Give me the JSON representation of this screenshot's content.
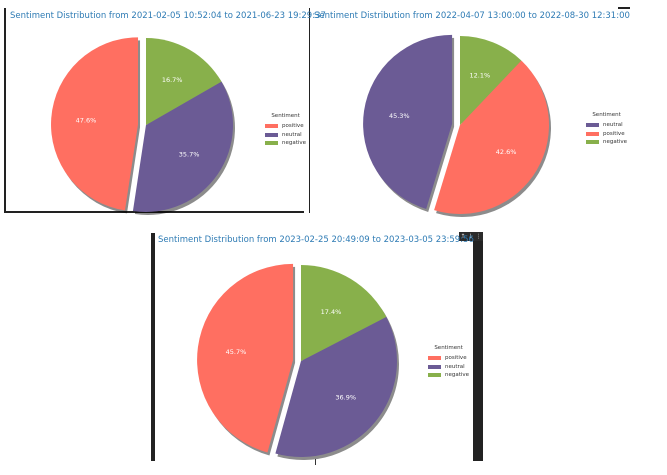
{
  "colors": {
    "positive": "#FF6F61",
    "neutral": "#6B5B95",
    "negative": "#88B04B",
    "title": "#2E7BB4",
    "label": "#ffffff"
  },
  "toolbar": {
    "up_icon": "↑",
    "down_icon": "↓",
    "menu_icon": "⋮"
  },
  "chart_data": [
    {
      "type": "pie",
      "title": "Sentiment Distribution from 2021-02-05 10:52:04 to 2021-06-23 19:29:37",
      "legend_title": "Sentiment",
      "legend_position": "right",
      "start_angle_deg": 90,
      "direction": "counterclockwise",
      "shadow": true,
      "slices": [
        {
          "label": "positive",
          "value": 47.6,
          "display": "47.6%",
          "exploded": true
        },
        {
          "label": "neutral",
          "value": 35.7,
          "display": "35.7%",
          "exploded": false
        },
        {
          "label": "negative",
          "value": 16.7,
          "display": "16.7%",
          "exploded": false
        }
      ]
    },
    {
      "type": "pie",
      "title": "Sentiment Distribution from 2022-04-07 13:00:00 to 2022-08-30 12:31:00",
      "legend_title": "Sentiment",
      "legend_position": "right",
      "start_angle_deg": 90,
      "direction": "counterclockwise",
      "shadow": true,
      "slices": [
        {
          "label": "neutral",
          "value": 45.3,
          "display": "45.3%",
          "exploded": true
        },
        {
          "label": "positive",
          "value": 42.6,
          "display": "42.6%",
          "exploded": false
        },
        {
          "label": "negative",
          "value": 12.1,
          "display": "12.1%",
          "exploded": false
        }
      ]
    },
    {
      "type": "pie",
      "title": "Sentiment Distribution from 2023-02-25 20:49:09 to 2023-03-05 23:59:56",
      "legend_title": "Sentiment",
      "legend_position": "right",
      "start_angle_deg": 90,
      "direction": "counterclockwise",
      "shadow": true,
      "slices": [
        {
          "label": "positive",
          "value": 45.7,
          "display": "45.7%",
          "exploded": true
        },
        {
          "label": "neutral",
          "value": 36.9,
          "display": "36.9%",
          "exploded": false
        },
        {
          "label": "negative",
          "value": 17.4,
          "display": "17.4%",
          "exploded": false
        }
      ]
    }
  ]
}
